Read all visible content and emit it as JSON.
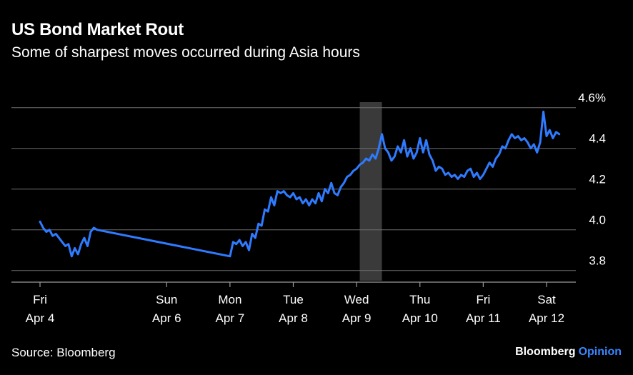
{
  "chart_data": {
    "type": "line",
    "title": "US Bond Market Rout",
    "subtitle": "Some of sharpest moves occurred during Asia hours",
    "ylim": [
      3.75,
      4.62
    ],
    "yticks": [
      {
        "value": 3.8,
        "label": "3.8"
      },
      {
        "value": 4.0,
        "label": "4.0"
      },
      {
        "value": 4.2,
        "label": "4.2"
      },
      {
        "value": 4.4,
        "label": "4.4"
      },
      {
        "value": 4.6,
        "label": "4.6%"
      }
    ],
    "xlim": [
      0,
      8.1
    ],
    "xticks": [
      {
        "value": 0,
        "day": "Fri",
        "date": "Apr 4"
      },
      {
        "value": 2,
        "day": "Sun",
        "date": "Apr 6"
      },
      {
        "value": 3,
        "day": "Mon",
        "date": "Apr 7"
      },
      {
        "value": 4,
        "day": "Tue",
        "date": "Apr 8"
      },
      {
        "value": 5,
        "day": "Wed",
        "date": "Apr 9"
      },
      {
        "value": 6,
        "day": "Thu",
        "date": "Apr 10"
      },
      {
        "value": 7,
        "day": "Fri",
        "date": "Apr 11"
      },
      {
        "value": 8,
        "day": "Sat",
        "date": "Apr 12"
      }
    ],
    "highlight": {
      "x_start": 5.05,
      "x_end": 5.4
    },
    "grid": true,
    "series": [
      {
        "color": "#2f7bff",
        "points": [
          [
            0.0,
            4.04
          ],
          [
            0.05,
            4.01
          ],
          [
            0.1,
            3.99
          ],
          [
            0.15,
            4.0
          ],
          [
            0.2,
            3.97
          ],
          [
            0.25,
            3.98
          ],
          [
            0.3,
            3.96
          ],
          [
            0.35,
            3.94
          ],
          [
            0.4,
            3.92
          ],
          [
            0.45,
            3.93
          ],
          [
            0.5,
            3.87
          ],
          [
            0.55,
            3.91
          ],
          [
            0.6,
            3.88
          ],
          [
            0.65,
            3.93
          ],
          [
            0.7,
            3.96
          ],
          [
            0.75,
            3.92
          ],
          [
            0.8,
            3.99
          ],
          [
            0.85,
            4.01
          ],
          [
            0.9,
            4.0
          ],
          [
            3.0,
            3.87
          ],
          [
            3.05,
            3.94
          ],
          [
            3.1,
            3.93
          ],
          [
            3.15,
            3.95
          ],
          [
            3.2,
            3.92
          ],
          [
            3.25,
            3.94
          ],
          [
            3.3,
            3.9
          ],
          [
            3.35,
            3.98
          ],
          [
            3.4,
            3.96
          ],
          [
            3.45,
            4.03
          ],
          [
            3.5,
            4.02
          ],
          [
            3.55,
            4.1
          ],
          [
            3.6,
            4.09
          ],
          [
            3.65,
            4.16
          ],
          [
            3.7,
            4.12
          ],
          [
            3.75,
            4.19
          ],
          [
            3.8,
            4.18
          ],
          [
            3.85,
            4.19
          ],
          [
            3.9,
            4.17
          ],
          [
            3.95,
            4.16
          ],
          [
            4.0,
            4.18
          ],
          [
            4.05,
            4.15
          ],
          [
            4.1,
            4.16
          ],
          [
            4.15,
            4.13
          ],
          [
            4.2,
            4.15
          ],
          [
            4.25,
            4.12
          ],
          [
            4.3,
            4.15
          ],
          [
            4.35,
            4.13
          ],
          [
            4.4,
            4.18
          ],
          [
            4.45,
            4.14
          ],
          [
            4.5,
            4.2
          ],
          [
            4.55,
            4.18
          ],
          [
            4.6,
            4.23
          ],
          [
            4.65,
            4.18
          ],
          [
            4.7,
            4.17
          ],
          [
            4.75,
            4.21
          ],
          [
            4.8,
            4.23
          ],
          [
            4.85,
            4.26
          ],
          [
            4.9,
            4.27
          ],
          [
            4.95,
            4.29
          ],
          [
            5.0,
            4.3
          ],
          [
            5.05,
            4.32
          ],
          [
            5.1,
            4.33
          ],
          [
            5.15,
            4.35
          ],
          [
            5.2,
            4.34
          ],
          [
            5.25,
            4.37
          ],
          [
            5.3,
            4.35
          ],
          [
            5.35,
            4.4
          ],
          [
            5.4,
            4.47
          ],
          [
            5.45,
            4.4
          ],
          [
            5.5,
            4.38
          ],
          [
            5.55,
            4.34
          ],
          [
            5.6,
            4.36
          ],
          [
            5.65,
            4.41
          ],
          [
            5.7,
            4.38
          ],
          [
            5.75,
            4.44
          ],
          [
            5.8,
            4.36
          ],
          [
            5.85,
            4.4
          ],
          [
            5.9,
            4.35
          ],
          [
            5.95,
            4.38
          ],
          [
            6.0,
            4.45
          ],
          [
            6.05,
            4.38
          ],
          [
            6.1,
            4.44
          ],
          [
            6.15,
            4.37
          ],
          [
            6.2,
            4.34
          ],
          [
            6.25,
            4.29
          ],
          [
            6.3,
            4.31
          ],
          [
            6.35,
            4.3
          ],
          [
            6.4,
            4.27
          ],
          [
            6.45,
            4.28
          ],
          [
            6.5,
            4.26
          ],
          [
            6.55,
            4.27
          ],
          [
            6.6,
            4.25
          ],
          [
            6.65,
            4.27
          ],
          [
            6.7,
            4.26
          ],
          [
            6.75,
            4.29
          ],
          [
            6.8,
            4.3
          ],
          [
            6.85,
            4.26
          ],
          [
            6.9,
            4.28
          ],
          [
            6.95,
            4.25
          ],
          [
            7.0,
            4.27
          ],
          [
            7.05,
            4.3
          ],
          [
            7.1,
            4.33
          ],
          [
            7.15,
            4.31
          ],
          [
            7.2,
            4.35
          ],
          [
            7.25,
            4.37
          ],
          [
            7.3,
            4.41
          ],
          [
            7.35,
            4.4
          ],
          [
            7.4,
            4.44
          ],
          [
            7.45,
            4.47
          ],
          [
            7.5,
            4.45
          ],
          [
            7.55,
            4.46
          ],
          [
            7.6,
            4.44
          ],
          [
            7.65,
            4.45
          ],
          [
            7.7,
            4.43
          ],
          [
            7.75,
            4.4
          ],
          [
            7.8,
            4.42
          ],
          [
            7.85,
            4.38
          ],
          [
            7.9,
            4.43
          ],
          [
            7.95,
            4.58
          ],
          [
            8.0,
            4.46
          ],
          [
            8.05,
            4.49
          ],
          [
            8.1,
            4.45
          ],
          [
            8.15,
            4.48
          ],
          [
            8.2,
            4.47
          ]
        ]
      }
    ]
  },
  "source_text": "Source: Bloomberg",
  "brand": {
    "primary": "Bloomberg",
    "secondary": "Opinion"
  }
}
